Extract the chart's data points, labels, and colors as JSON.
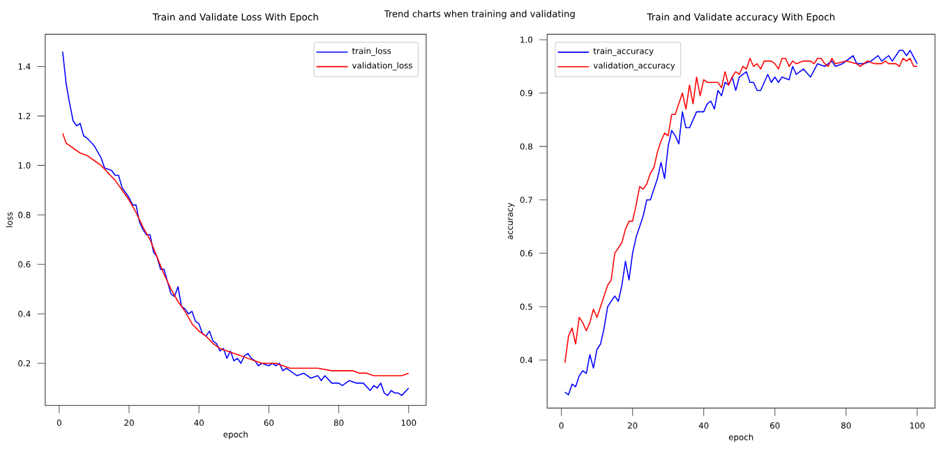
{
  "chart_data": [
    {
      "type": "line",
      "title": "Train and Validate Loss With Epoch",
      "xlabel": "epoch",
      "ylabel": "loss",
      "annotations": [
        "Trend charts when training and validating"
      ],
      "xlim": [
        -4,
        105
      ],
      "ylim": [
        0.03,
        1.53
      ],
      "xticks": [
        0,
        20,
        40,
        60,
        80,
        100
      ],
      "yticks": [
        0.2,
        0.4,
        0.6,
        0.8,
        {
          "value": 1.0,
          "label": "1.0"
        },
        1.2,
        1.4
      ],
      "legend": "top right",
      "series": [
        {
          "name": "train_loss",
          "color": "#0000ff",
          "x": [
            1,
            2,
            3,
            4,
            5,
            6,
            7,
            8,
            10,
            12,
            13,
            15,
            16,
            17,
            18,
            20,
            21,
            22,
            23,
            24,
            25,
            26,
            27,
            28,
            29,
            30,
            31,
            32,
            33,
            34,
            35,
            36,
            37,
            38,
            39,
            40,
            41,
            42,
            43,
            44,
            45,
            46,
            47,
            48,
            49,
            50,
            51,
            52,
            53,
            54,
            55,
            56,
            57,
            58,
            60,
            61,
            62,
            63,
            64,
            65,
            66,
            68,
            70,
            72,
            74,
            75,
            76,
            78,
            80,
            81,
            83,
            85,
            87,
            89,
            90,
            91,
            92,
            93,
            94,
            95,
            96,
            97,
            98,
            100
          ],
          "values": [
            1.46,
            1.33,
            1.25,
            1.18,
            1.16,
            1.17,
            1.12,
            1.11,
            1.08,
            1.03,
            0.99,
            0.98,
            0.96,
            0.96,
            0.91,
            0.87,
            0.84,
            0.84,
            0.77,
            0.74,
            0.72,
            0.72,
            0.65,
            0.63,
            0.58,
            0.58,
            0.53,
            0.48,
            0.47,
            0.51,
            0.43,
            0.42,
            0.4,
            0.41,
            0.37,
            0.36,
            0.32,
            0.31,
            0.33,
            0.29,
            0.28,
            0.25,
            0.26,
            0.22,
            0.25,
            0.21,
            0.22,
            0.2,
            0.23,
            0.24,
            0.22,
            0.21,
            0.19,
            0.2,
            0.19,
            0.2,
            0.19,
            0.2,
            0.17,
            0.18,
            0.17,
            0.15,
            0.16,
            0.14,
            0.15,
            0.13,
            0.15,
            0.12,
            0.12,
            0.11,
            0.13,
            0.12,
            0.12,
            0.09,
            0.11,
            0.1,
            0.12,
            0.08,
            0.07,
            0.09,
            0.08,
            0.08,
            0.07,
            0.1
          ]
        },
        {
          "name": "validation_loss",
          "color": "#ff0000",
          "x": [
            1,
            2,
            4,
            6,
            8,
            10,
            12,
            14,
            16,
            18,
            20,
            22,
            24,
            26,
            28,
            30,
            32,
            34,
            36,
            38,
            40,
            42,
            44,
            46,
            48,
            50,
            52,
            54,
            56,
            58,
            60,
            62,
            64,
            66,
            70,
            74,
            78,
            82,
            84,
            86,
            88,
            90,
            92,
            94,
            96,
            98,
            100
          ],
          "values": [
            1.13,
            1.09,
            1.07,
            1.05,
            1.04,
            1.02,
            1.0,
            0.97,
            0.94,
            0.9,
            0.86,
            0.81,
            0.75,
            0.7,
            0.63,
            0.56,
            0.5,
            0.45,
            0.41,
            0.36,
            0.33,
            0.31,
            0.28,
            0.26,
            0.25,
            0.24,
            0.23,
            0.22,
            0.21,
            0.2,
            0.2,
            0.2,
            0.19,
            0.18,
            0.18,
            0.18,
            0.17,
            0.17,
            0.17,
            0.16,
            0.16,
            0.15,
            0.15,
            0.15,
            0.15,
            0.15,
            0.16
          ]
        }
      ]
    },
    {
      "type": "line",
      "title": "Train and Validate accuracy With Epoch",
      "xlabel": "epoch",
      "ylabel": "accuracy",
      "xlim": [
        -4,
        105
      ],
      "ylim": [
        0.31,
        1.01
      ],
      "xticks": [
        0,
        20,
        40,
        60,
        80,
        100
      ],
      "yticks": [
        0.4,
        0.5,
        0.6,
        0.7,
        0.8,
        0.9,
        {
          "value": 1.0,
          "label": "1.0"
        }
      ],
      "legend": "top left",
      "series": [
        {
          "name": "train_accuracy",
          "color": "#0000ff",
          "x": [
            1,
            2,
            3,
            4,
            5,
            6,
            7,
            8,
            9,
            10,
            11,
            12,
            13,
            14,
            15,
            16,
            17,
            18,
            19,
            20,
            21,
            22,
            23,
            24,
            25,
            26,
            27,
            28,
            29,
            30,
            31,
            32,
            33,
            34,
            35,
            36,
            37,
            38,
            40,
            41,
            42,
            43,
            44,
            45,
            46,
            47,
            48,
            49,
            50,
            52,
            53,
            54,
            55,
            56,
            58,
            59,
            60,
            61,
            62,
            64,
            65,
            66,
            68,
            70,
            72,
            74,
            76,
            77,
            79,
            81,
            82,
            83,
            85,
            87,
            89,
            90,
            92,
            93,
            95,
            96,
            97,
            98,
            100
          ],
          "values": [
            0.34,
            0.335,
            0.355,
            0.35,
            0.37,
            0.38,
            0.375,
            0.41,
            0.385,
            0.42,
            0.43,
            0.46,
            0.5,
            0.51,
            0.52,
            0.51,
            0.54,
            0.585,
            0.55,
            0.6,
            0.63,
            0.65,
            0.67,
            0.7,
            0.7,
            0.72,
            0.74,
            0.77,
            0.74,
            0.8,
            0.83,
            0.82,
            0.805,
            0.865,
            0.835,
            0.835,
            0.85,
            0.865,
            0.865,
            0.88,
            0.885,
            0.87,
            0.905,
            0.895,
            0.92,
            0.915,
            0.93,
            0.905,
            0.93,
            0.94,
            0.92,
            0.92,
            0.905,
            0.905,
            0.935,
            0.92,
            0.93,
            0.92,
            0.93,
            0.925,
            0.95,
            0.935,
            0.945,
            0.93,
            0.955,
            0.95,
            0.96,
            0.95,
            0.955,
            0.965,
            0.97,
            0.955,
            0.955,
            0.96,
            0.97,
            0.96,
            0.97,
            0.96,
            0.98,
            0.98,
            0.97,
            0.98,
            0.955
          ]
        },
        {
          "name": "validation_accuracy",
          "color": "#ff0000",
          "x": [
            1,
            2,
            3,
            4,
            5,
            6,
            7,
            8,
            9,
            10,
            11,
            12,
            13,
            14,
            15,
            16,
            17,
            18,
            19,
            20,
            21,
            22,
            23,
            24,
            25,
            26,
            27,
            28,
            29,
            30,
            31,
            32,
            33,
            34,
            35,
            36,
            37,
            38,
            39,
            40,
            41,
            42,
            44,
            45,
            46,
            47,
            48,
            49,
            50,
            51,
            52,
            53,
            54,
            55,
            56,
            57,
            59,
            60,
            61,
            62,
            63,
            64,
            65,
            66,
            68,
            70,
            71,
            72,
            73,
            74,
            75,
            76,
            77,
            80,
            83,
            84,
            86,
            88,
            90,
            91,
            92,
            94,
            95,
            96,
            97,
            98,
            99,
            100
          ],
          "values": [
            0.395,
            0.445,
            0.46,
            0.43,
            0.48,
            0.47,
            0.455,
            0.47,
            0.495,
            0.48,
            0.5,
            0.52,
            0.54,
            0.55,
            0.6,
            0.61,
            0.62,
            0.645,
            0.66,
            0.66,
            0.69,
            0.725,
            0.72,
            0.73,
            0.75,
            0.76,
            0.79,
            0.81,
            0.825,
            0.82,
            0.86,
            0.86,
            0.88,
            0.9,
            0.87,
            0.915,
            0.88,
            0.93,
            0.895,
            0.925,
            0.92,
            0.92,
            0.92,
            0.91,
            0.94,
            0.915,
            0.93,
            0.94,
            0.935,
            0.95,
            0.945,
            0.965,
            0.95,
            0.955,
            0.945,
            0.96,
            0.96,
            0.955,
            0.945,
            0.965,
            0.965,
            0.95,
            0.96,
            0.955,
            0.96,
            0.96,
            0.955,
            0.965,
            0.965,
            0.955,
            0.95,
            0.965,
            0.955,
            0.96,
            0.955,
            0.95,
            0.96,
            0.955,
            0.955,
            0.96,
            0.955,
            0.955,
            0.95,
            0.965,
            0.96,
            0.965,
            0.95,
            0.95
          ]
        }
      ]
    }
  ]
}
